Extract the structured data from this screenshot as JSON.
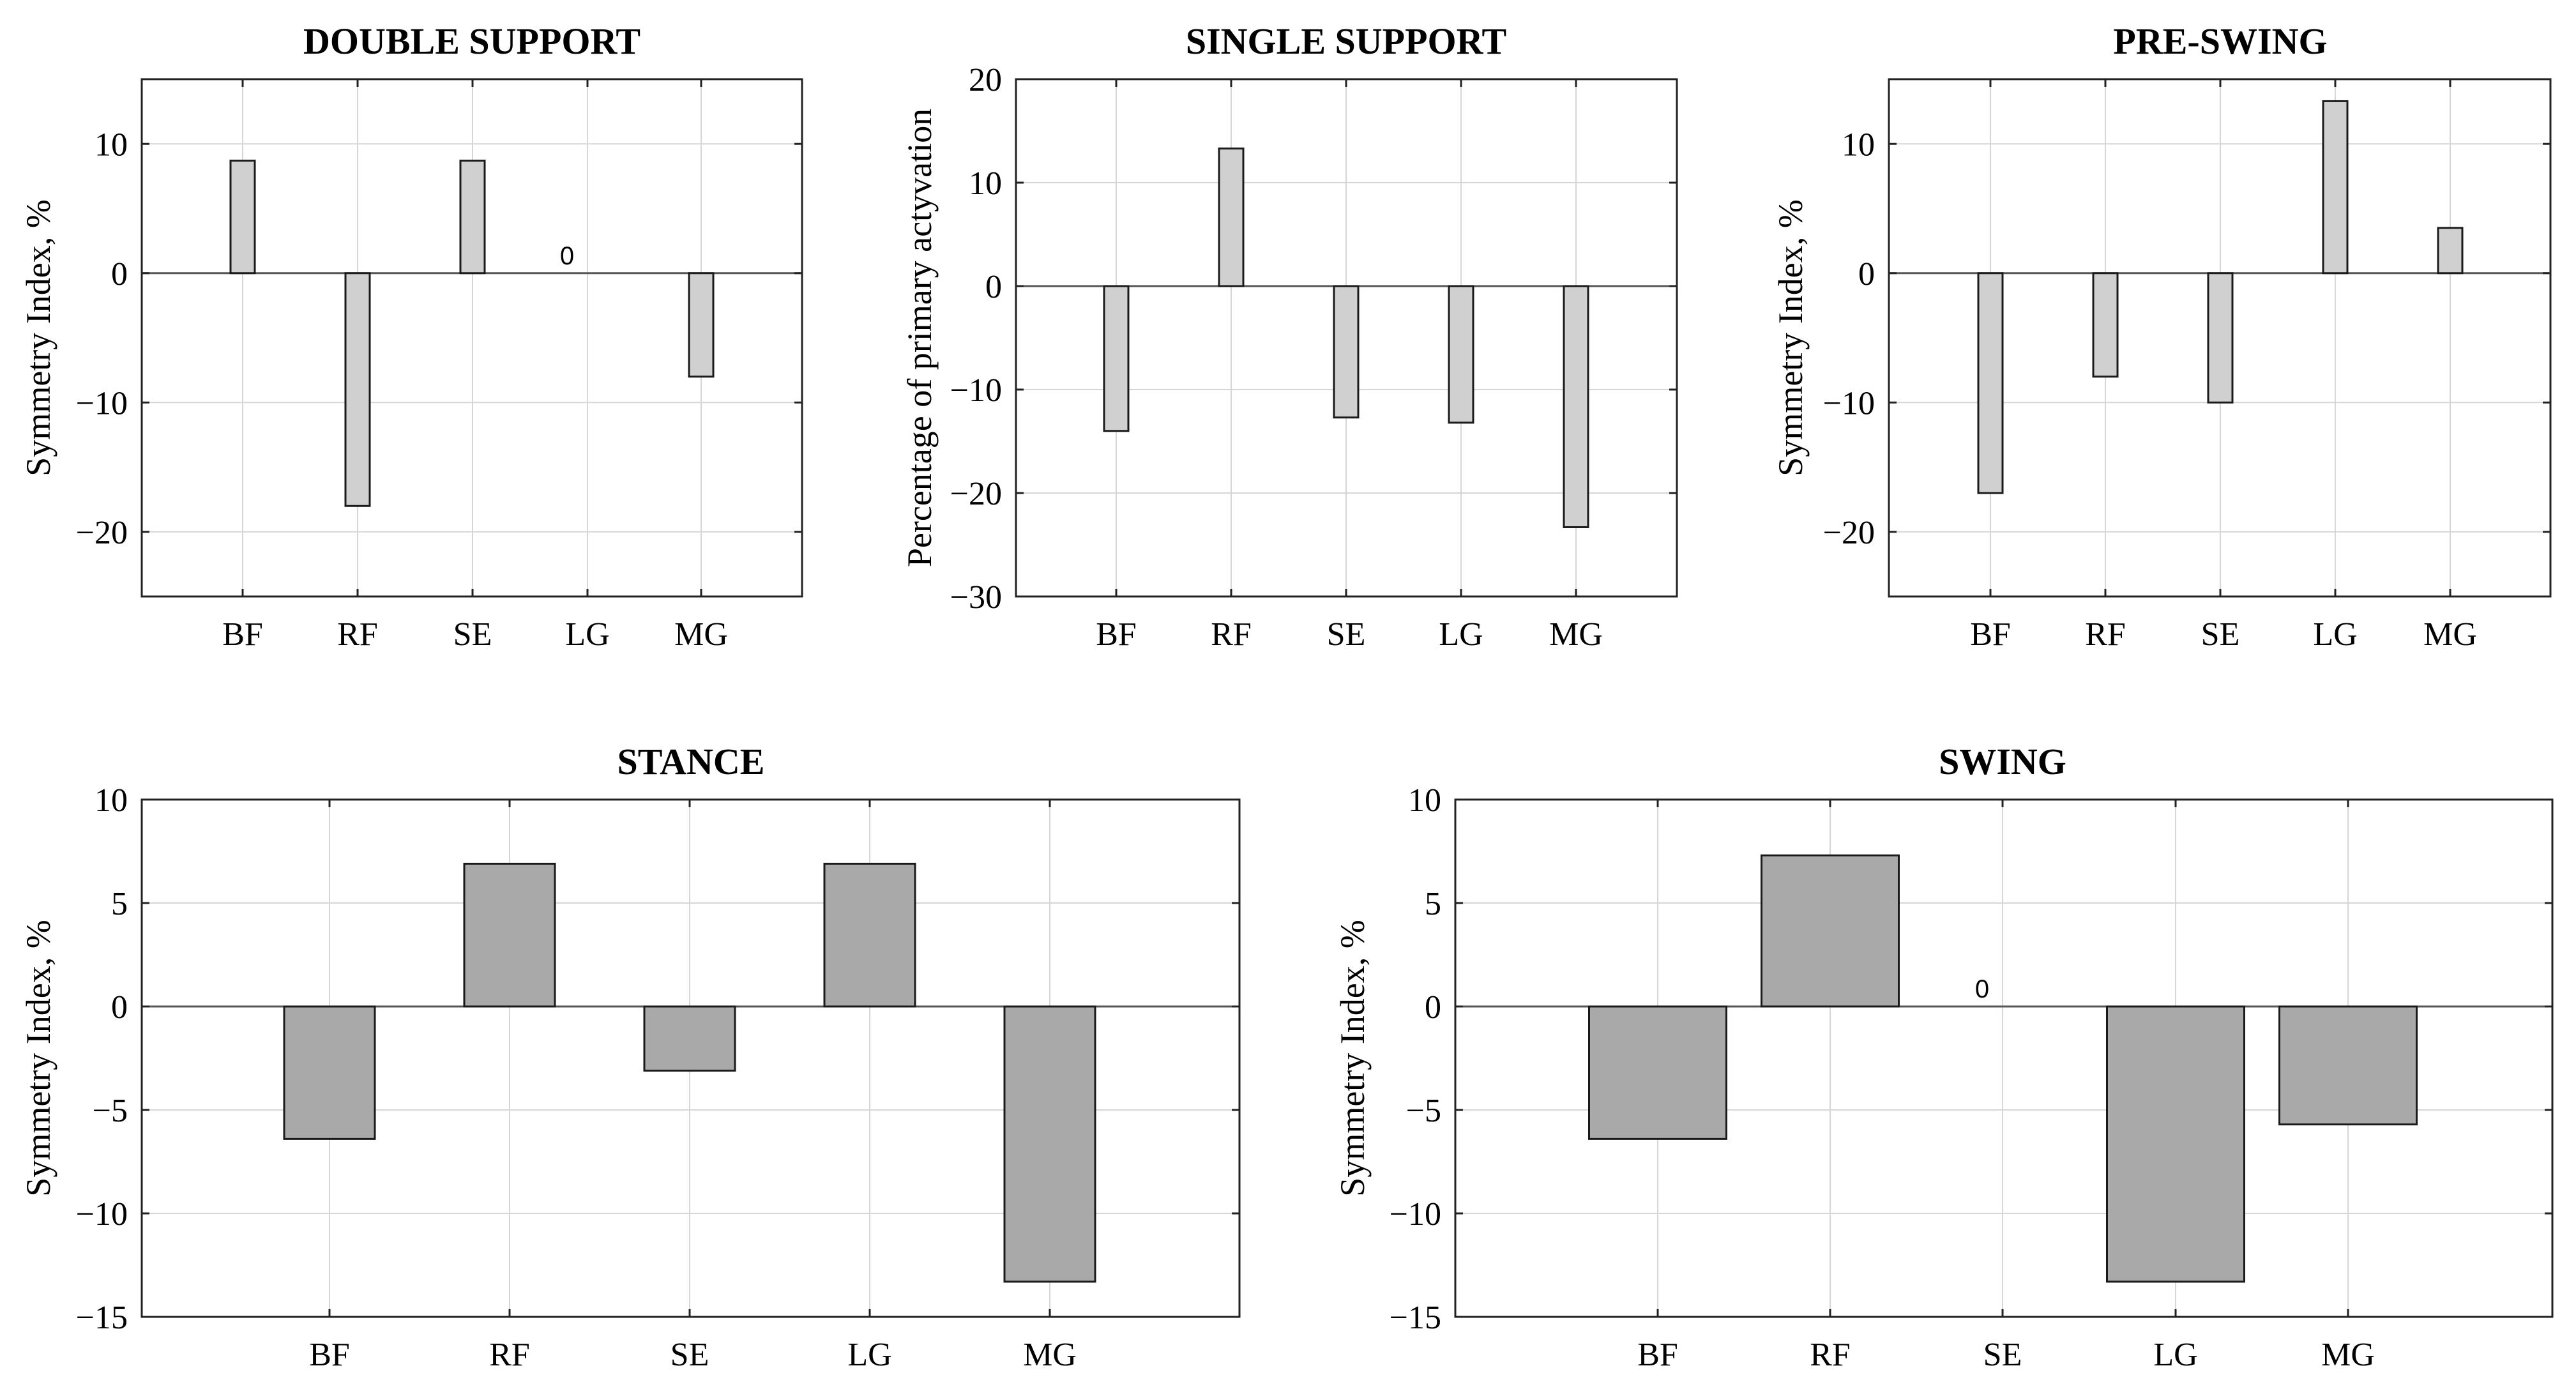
{
  "colors": {
    "bar_light": "#d0d0d0",
    "bar_dark": "#a9a9a9",
    "frame": "#222222",
    "grid": "#d6d6d6"
  },
  "chart_data": [
    {
      "type": "bar",
      "title": "DOUBLE SUPPORT",
      "ylabel": "Symmetry Index, %",
      "xlabel": "",
      "categories": [
        "BF",
        "RF",
        "SE",
        "LG",
        "MG"
      ],
      "values": [
        8.7,
        -18.0,
        8.7,
        0,
        -8.0
      ],
      "ylim": [
        -25,
        15
      ],
      "yticks": [
        10,
        0,
        -10,
        -20
      ],
      "ytick_labels": [
        "10",
        "0",
        "−10",
        "−20"
      ],
      "annotations": [
        {
          "category": "LG",
          "text": "0"
        }
      ],
      "grid": true
    },
    {
      "type": "bar",
      "title": "SINGLE SUPPORT",
      "ylabel": "Percentage of primary actyvation",
      "xlabel": "",
      "categories": [
        "BF",
        "RF",
        "SE",
        "LG",
        "MG"
      ],
      "values": [
        -14.0,
        13.3,
        -12.7,
        -13.2,
        -23.3
      ],
      "ylim": [
        -30,
        20
      ],
      "yticks": [
        20,
        10,
        0,
        -10,
        -20,
        -30
      ],
      "ytick_labels": [
        "20",
        "10",
        "0",
        "−10",
        "−20",
        "−30"
      ],
      "annotations": [],
      "grid": true
    },
    {
      "type": "bar",
      "title": "PRE-SWING",
      "ylabel": "Symmetry Index, %",
      "xlabel": "",
      "categories": [
        "BF",
        "RF",
        "SE",
        "LG",
        "MG"
      ],
      "values": [
        -17.0,
        -8.0,
        -10.0,
        13.3,
        3.5
      ],
      "ylim": [
        -25,
        15
      ],
      "yticks": [
        10,
        0,
        -10,
        -20
      ],
      "ytick_labels": [
        "10",
        "0",
        "−10",
        "−20"
      ],
      "annotations": [],
      "grid": true
    },
    {
      "type": "bar",
      "title": "STANCE",
      "ylabel": "Symmetry Index, %",
      "xlabel": "",
      "categories": [
        "BF",
        "RF",
        "SE",
        "LG",
        "MG"
      ],
      "values": [
        -6.4,
        6.9,
        -3.1,
        6.9,
        -13.3
      ],
      "ylim": [
        -15,
        10
      ],
      "yticks": [
        10,
        5,
        0,
        -5,
        -10,
        -15
      ],
      "ytick_labels": [
        "10",
        "5",
        "0",
        "−5",
        "−10",
        "−15"
      ],
      "annotations": [],
      "grid": true
    },
    {
      "type": "bar",
      "title": "SWING",
      "ylabel": "Symmetry Index, %",
      "xlabel": "",
      "categories": [
        "BF",
        "RF",
        "SE",
        "LG",
        "MG"
      ],
      "values": [
        -6.4,
        7.3,
        0,
        -13.3,
        -5.7
      ],
      "ylim": [
        -15,
        10
      ],
      "yticks": [
        10,
        5,
        0,
        -5,
        -10,
        -15
      ],
      "ytick_labels": [
        "10",
        "5",
        "0",
        "−5",
        "−10",
        "−15"
      ],
      "annotations": [
        {
          "category": "SE",
          "text": "0"
        }
      ],
      "grid": true
    }
  ]
}
